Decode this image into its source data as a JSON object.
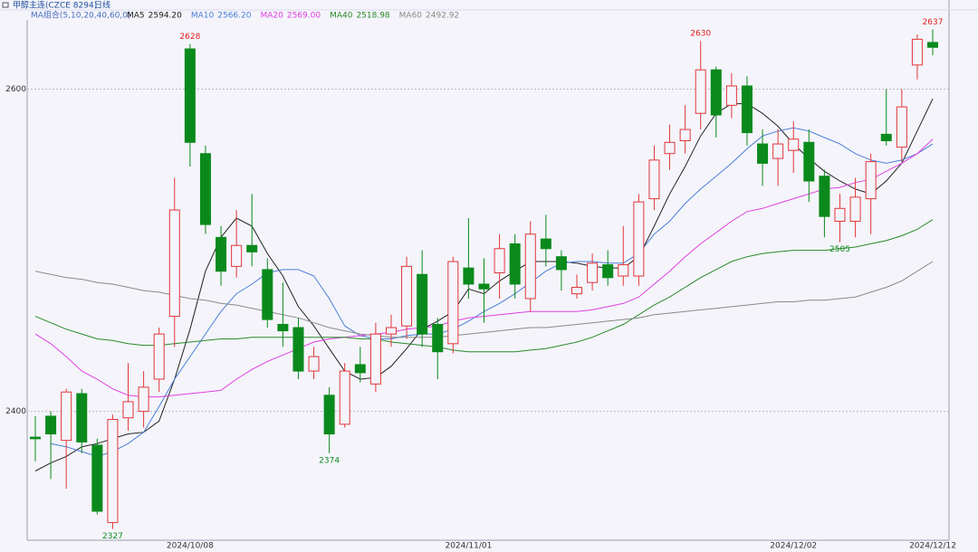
{
  "chart_data": {
    "type": "candlestick",
    "title": "甲醇主连(CZCE 8294)",
    "period": "日线",
    "indicator": "MA组合(5,10,20,40,60,0)",
    "categories": [
      null,
      null,
      null,
      null,
      null,
      null,
      null,
      null,
      null,
      null,
      "2024/10/08",
      null,
      null,
      null,
      null,
      null,
      null,
      null,
      null,
      null,
      null,
      null,
      null,
      null,
      null,
      null,
      null,
      null,
      "2024/11/01",
      null,
      null,
      null,
      null,
      null,
      null,
      null,
      null,
      null,
      null,
      null,
      null,
      null,
      null,
      null,
      null,
      null,
      null,
      null,
      null,
      "2024/12/02",
      null,
      null,
      null,
      null,
      null,
      null,
      null,
      null,
      "2024/12/12"
    ],
    "open": [
      2384,
      2397,
      2382,
      2411,
      2379,
      2331,
      2396,
      2400,
      2420,
      2459,
      2625,
      2560,
      2508,
      2490,
      2503,
      2488,
      2454,
      2452,
      2425,
      2410,
      2392,
      2429,
      2417,
      2448,
      2453,
      2485,
      2454,
      2442,
      2489,
      2479,
      2486,
      2504,
      2470,
      2507,
      2496,
      2473,
      2480,
      2491,
      2484,
      2484,
      2532,
      2560,
      2568,
      2585,
      2612,
      2590,
      2602,
      2566,
      2557,
      2562,
      2567,
      2546,
      2518,
      2518,
      2532,
      2572,
      2564,
      2615,
      2629
    ],
    "high": [
      2397,
      2400,
      2414,
      2414,
      2383,
      2398,
      2430,
      2425,
      2452,
      2545,
      2628,
      2565,
      2515,
      2525,
      2535,
      2495,
      2480,
      2458,
      2440,
      2415,
      2430,
      2440,
      2455,
      2460,
      2496,
      2500,
      2458,
      2496,
      2520,
      2495,
      2510,
      2510,
      2518,
      2522,
      2500,
      2485,
      2498,
      2500,
      2515,
      2535,
      2565,
      2578,
      2590,
      2630,
      2614,
      2610,
      2608,
      2575,
      2575,
      2580,
      2575,
      2550,
      2535,
      2545,
      2560,
      2600,
      2600,
      2634,
      2637
    ],
    "low": [
      2369,
      2358,
      2352,
      2374,
      2336,
      2327,
      2388,
      2390,
      2412,
      2440,
      2552,
      2510,
      2478,
      2483,
      2490,
      2452,
      2440,
      2420,
      2420,
      2374,
      2390,
      2418,
      2412,
      2440,
      2445,
      2440,
      2420,
      2436,
      2470,
      2455,
      2470,
      2470,
      2462,
      2490,
      2475,
      2470,
      2475,
      2478,
      2478,
      2478,
      2525,
      2550,
      2560,
      2575,
      2570,
      2582,
      2565,
      2540,
      2540,
      2548,
      2530,
      2508,
      2505,
      2508,
      2510,
      2565,
      2555,
      2606,
      2621
    ],
    "close": [
      2383,
      2386,
      2412,
      2381,
      2338,
      2395,
      2406,
      2415,
      2448,
      2525,
      2567,
      2516,
      2487,
      2503,
      2499,
      2457,
      2450,
      2425,
      2434,
      2386,
      2425,
      2424,
      2448,
      2452,
      2490,
      2448,
      2437,
      2493,
      2479,
      2476,
      2501,
      2479,
      2510,
      2501,
      2488,
      2477,
      2492,
      2483,
      2491,
      2530,
      2556,
      2567,
      2575,
      2612,
      2584,
      2602,
      2573,
      2554,
      2566,
      2569,
      2543,
      2521,
      2526,
      2533,
      2555,
      2568,
      2589,
      2631,
      2626
    ],
    "up_color": "#e2363a",
    "down_color": "#0a8a1c",
    "series": [
      {
        "name": "MA5",
        "color": "#222222",
        "readout": {
          "value": 2594.2,
          "label": "2594.20"
        },
        "values": [
          2363,
          2368,
          2372,
          2378,
          2380,
          2383,
          2386,
          2387,
          2394,
          2420,
          2451,
          2487,
          2508,
          2520,
          2515,
          2498,
          2484,
          2465,
          2453,
          2439,
          2425,
          2420,
          2421,
          2428,
          2439,
          2451,
          2456,
          2462,
          2476,
          2473,
          2481,
          2487,
          2493,
          2493,
          2493,
          2492,
          2490,
          2489,
          2489,
          2496,
          2515,
          2535,
          2552,
          2571,
          2585,
          2591,
          2591,
          2585,
          2577,
          2566,
          2557,
          2549,
          2543,
          2538,
          2535,
          2543,
          2554,
          2574,
          2594
        ]
      },
      {
        "name": "MA10",
        "color": "#4a7fd8",
        "readout": {
          "value": 2566.2,
          "label": "2566.20"
        },
        "values": [
          null,
          2380,
          2378,
          2375,
          2372,
          2375,
          2380,
          2387,
          2403,
          2420,
          2434,
          2448,
          2462,
          2473,
          2479,
          2486,
          2488,
          2488,
          2484,
          2470,
          2453,
          2447,
          2445,
          2445,
          2447,
          2448,
          2448,
          2451,
          2456,
          2462,
          2467,
          2473,
          2480,
          2487,
          2492,
          2493,
          2493,
          2492,
          2492,
          2498,
          2510,
          2518,
          2529,
          2538,
          2546,
          2554,
          2563,
          2571,
          2574,
          2576,
          2574,
          2570,
          2566,
          2560,
          2556,
          2554,
          2556,
          2560,
          2566
        ]
      },
      {
        "name": "MA20",
        "color": "#e040e0",
        "readout": {
          "value": 2569,
          "label": "2569.00"
        },
        "values": [
          2448,
          2442,
          2434,
          2425,
          2420,
          2414,
          2410,
          2409,
          2409,
          2410,
          2411,
          2412,
          2413,
          2420,
          2426,
          2431,
          2435,
          2439,
          2443,
          2445,
          2446,
          2447,
          2448,
          2449,
          2451,
          2452,
          2453,
          2456,
          2458,
          2459,
          2460,
          2461,
          2462,
          2462,
          2462,
          2462,
          2463,
          2465,
          2467,
          2471,
          2479,
          2487,
          2496,
          2504,
          2511,
          2518,
          2524,
          2526,
          2529,
          2532,
          2535,
          2538,
          2539,
          2542,
          2544,
          2549,
          2554,
          2560,
          2569
        ]
      },
      {
        "name": "MA40",
        "color": "#2a8a2a",
        "readout": {
          "value": 2518.98,
          "label": "2518.98"
        },
        "values": [
          2459,
          2455,
          2451,
          2448,
          2445,
          2444,
          2442,
          2441,
          2441,
          2442,
          2443,
          2444,
          2445,
          2445,
          2446,
          2446,
          2446,
          2446,
          2446,
          2446,
          2446,
          2445,
          2445,
          2443,
          2442,
          2441,
          2440,
          2438,
          2437,
          2437,
          2437,
          2437,
          2438,
          2439,
          2441,
          2443,
          2446,
          2450,
          2454,
          2460,
          2466,
          2471,
          2477,
          2483,
          2488,
          2493,
          2496,
          2498,
          2499,
          2500,
          2500,
          2500,
          2501,
          2502,
          2504,
          2506,
          2509,
          2513,
          2519
        ]
      },
      {
        "name": "MA60",
        "color": "#8a8a8a",
        "readout": {
          "value": 2492.92,
          "label": "2492.92"
        },
        "values": [
          2487,
          2485,
          2483,
          2482,
          2480,
          2479,
          2477,
          2475,
          2474,
          2472,
          2470,
          2469,
          2467,
          2466,
          2464,
          2462,
          2460,
          2458,
          2455,
          2452,
          2450,
          2448,
          2447,
          2446,
          2446,
          2446,
          2446,
          2447,
          2448,
          2449,
          2450,
          2451,
          2452,
          2452,
          2453,
          2454,
          2455,
          2456,
          2457,
          2458,
          2460,
          2461,
          2462,
          2463,
          2464,
          2465,
          2466,
          2467,
          2468,
          2468,
          2469,
          2469,
          2470,
          2471,
          2474,
          2477,
          2481,
          2487,
          2493
        ]
      }
    ],
    "ylim": [
      2320,
      2643
    ],
    "yticks": [
      2400,
      2600
    ],
    "grid": true
  }
}
